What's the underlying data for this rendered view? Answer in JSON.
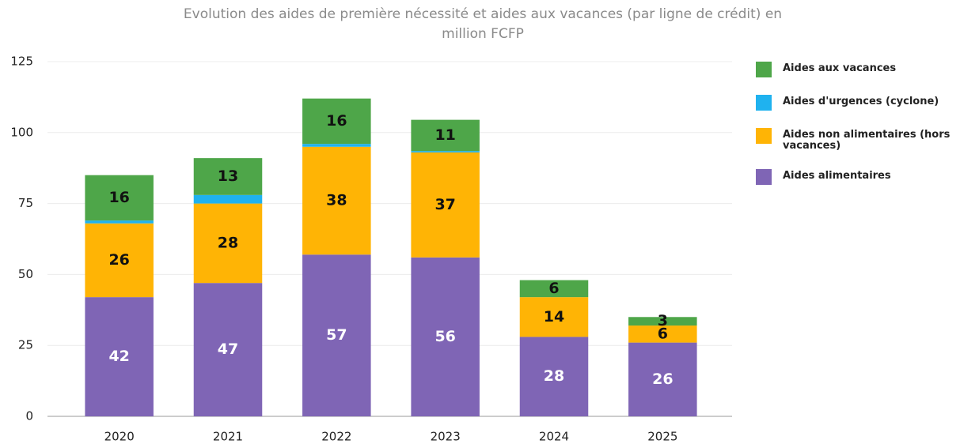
{
  "chart_data": {
    "type": "stacked_bar",
    "title": "Evolution des aides de première nécessité et aides aux vacances (par ligne de crédit) en  million FCFP",
    "categories": [
      "2020",
      "2021",
      "2022",
      "2023",
      "2024",
      "2025"
    ],
    "series": [
      {
        "name": "Aides alimentaires",
        "color": "#7f65b5",
        "values": [
          42,
          47,
          57,
          56,
          28,
          26
        ],
        "labels": true,
        "label_color": "#ffffff"
      },
      {
        "name": "Aides non alimentaires (hors vacances)",
        "color": "#ffb405",
        "values": [
          26,
          28,
          38,
          37,
          14,
          6
        ],
        "labels": true,
        "label_color": "#111111"
      },
      {
        "name": "Aides d'urgences (cyclone)",
        "color": "#1fb2ef",
        "values": [
          1,
          3,
          1,
          0.5,
          0,
          0
        ],
        "labels": false,
        "label_color": "#111111"
      },
      {
        "name": "Aides aux vacances",
        "color": "#4ea649",
        "values": [
          16,
          13,
          16,
          11,
          6,
          3
        ],
        "labels": true,
        "label_color": "#111111"
      }
    ],
    "ylim": [
      0,
      125
    ],
    "yticks": [
      0,
      25,
      50,
      75,
      100,
      125
    ],
    "grid": true,
    "legend": "right",
    "legend_order": "reversed"
  }
}
